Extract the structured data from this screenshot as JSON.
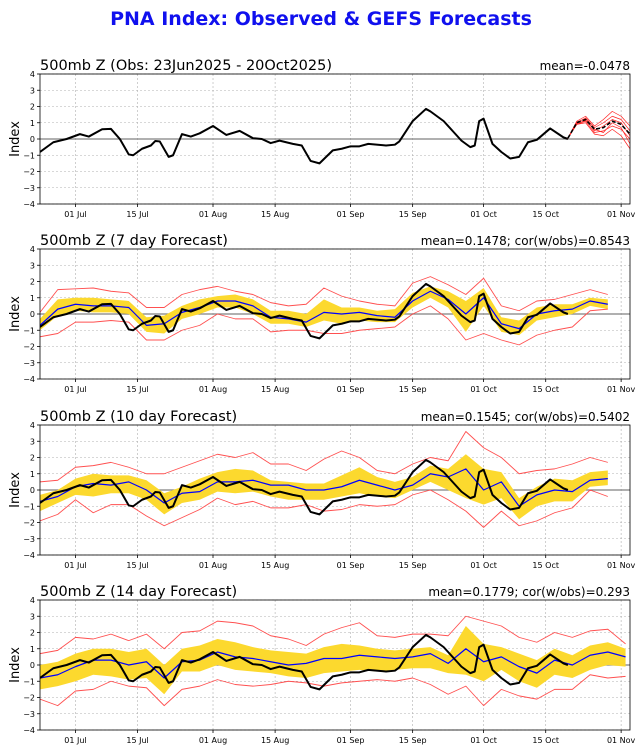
{
  "title": "PNA Index: Observed & GEFS Forecasts",
  "colors": {
    "title": "#1010ee",
    "observed": "#000000",
    "forecast_mean": "#0000ff",
    "spread_band": "#fcd92e",
    "extremes": "#ff5050",
    "members": "#ff2020",
    "grid": "#b0b0b0"
  },
  "chart_data": [
    {
      "type": "line",
      "title": "500mb Z (Obs: 23Jun2025 - 20Oct2025)",
      "stat_text": "mean=-0.0478",
      "ylabel": "Index",
      "ylim": [
        -4,
        4
      ],
      "xlim": [
        "2025-06-23",
        "2025-11-03"
      ],
      "grid": true,
      "yticks": [
        "4",
        "3",
        "2",
        "1",
        "0",
        "−1",
        "−2",
        "−3",
        "−4"
      ],
      "xticks": [
        [
          "2025-07-01",
          "01 Jul"
        ],
        [
          "2025-07-15",
          "15 Jul"
        ],
        [
          "2025-08-01",
          "01 Aug"
        ],
        [
          "2025-08-15",
          "15 Aug"
        ],
        [
          "2025-09-01",
          "01 Sep"
        ],
        [
          "2025-09-15",
          "15 Sep"
        ],
        [
          "2025-10-01",
          "01 Oct"
        ],
        [
          "2025-10-15",
          "15 Oct"
        ],
        [
          "2025-11-01",
          "01 Nov"
        ]
      ],
      "gefs": {
        "dates": [
          "2025-10-20",
          "2025-10-22",
          "2025-10-24",
          "2025-10-26",
          "2025-10-28",
          "2025-10-30",
          "2025-11-01",
          "2025-11-03"
        ],
        "mean": [
          0.05,
          1.0,
          1.2,
          0.6,
          0.7,
          1.1,
          0.9,
          0.3
        ],
        "members": [
          [
            0.05,
            1.1,
            1.4,
            0.8,
            1.2,
            1.7,
            1.4,
            0.8
          ],
          [
            0.05,
            0.9,
            1.0,
            0.3,
            0.2,
            0.6,
            0.2,
            -0.6
          ],
          [
            0.05,
            1.0,
            1.3,
            0.7,
            1.0,
            1.4,
            1.2,
            0.5
          ],
          [
            0.05,
            0.9,
            1.1,
            0.4,
            0.5,
            0.8,
            0.6,
            0.0
          ],
          [
            0.05,
            1.05,
            1.25,
            0.5,
            0.8,
            1.2,
            1.0,
            0.2
          ],
          [
            0.05,
            0.95,
            1.15,
            0.6,
            0.4,
            1.0,
            0.7,
            -0.3
          ]
        ]
      }
    },
    {
      "type": "line",
      "title": "500mb Z (7 day Forecast)",
      "stat_text": "mean=0.1478; cor(w/obs)=0.8543",
      "ylabel": "Index",
      "forecast": {
        "mean": [
          -0.7,
          0.3,
          0.6,
          0.5,
          0.5,
          0.4,
          -0.7,
          -0.6,
          0.1,
          0.4,
          0.8,
          0.8,
          0.5,
          -0.2,
          -0.3,
          -0.5,
          0.1,
          0.0,
          0.1,
          -0.1,
          -0.2,
          0.8,
          1.4,
          0.9,
          0.0,
          1.0,
          -0.6,
          -0.9,
          0.0,
          0.2,
          0.3,
          0.8,
          0.6
        ],
        "band_hi": [
          -0.3,
          0.9,
          1.0,
          1.0,
          0.9,
          0.8,
          -0.2,
          -0.1,
          0.5,
          0.9,
          1.1,
          1.2,
          0.9,
          0.2,
          0.2,
          0.0,
          0.9,
          0.4,
          0.4,
          0.2,
          0.3,
          1.3,
          1.7,
          1.4,
          0.8,
          1.6,
          -0.2,
          -0.4,
          0.4,
          0.6,
          0.6,
          1.0,
          0.9
        ],
        "band_lo": [
          -1.0,
          -0.1,
          0.2,
          0.1,
          0.1,
          0.0,
          -1.1,
          -1.2,
          -0.3,
          0.0,
          0.4,
          0.4,
          0.0,
          -0.6,
          -0.6,
          -0.8,
          -0.4,
          -0.6,
          -0.4,
          -0.5,
          -0.5,
          0.4,
          1.0,
          0.4,
          -1.1,
          0.5,
          -1.1,
          -1.3,
          -0.4,
          -0.2,
          0.0,
          0.5,
          0.3
        ],
        "max": [
          0.1,
          1.5,
          1.55,
          1.6,
          1.4,
          1.3,
          0.4,
          0.4,
          1.2,
          1.5,
          1.7,
          1.4,
          1.2,
          0.7,
          0.5,
          0.6,
          1.6,
          1.1,
          0.8,
          0.6,
          0.5,
          1.9,
          2.3,
          1.8,
          1.2,
          2.2,
          0.5,
          0.2,
          0.8,
          0.9,
          1.2,
          1.5,
          1.2
        ],
        "min": [
          -1.4,
          -1.2,
          -0.5,
          -0.5,
          -0.4,
          -0.5,
          -1.6,
          -1.6,
          -1.0,
          -0.7,
          0.0,
          -0.3,
          -0.3,
          -1.1,
          -1.0,
          -1.0,
          -1.2,
          -1.2,
          -1.0,
          -0.9,
          -0.8,
          0.0,
          0.5,
          -0.3,
          -1.6,
          -1.2,
          -1.6,
          -1.9,
          -1.3,
          -1.0,
          -0.8,
          0.2,
          0.3
        ]
      }
    },
    {
      "type": "line",
      "title": "500mb Z (10 day Forecast)",
      "stat_text": "mean=0.1545; cor(w/obs)=0.5402",
      "ylabel": "Index",
      "forecast": {
        "mean": [
          -0.7,
          -0.4,
          0.2,
          0.4,
          0.3,
          0.5,
          0.0,
          -0.8,
          -0.2,
          -0.1,
          0.5,
          0.5,
          0.6,
          0.3,
          0.3,
          0.0,
          0.0,
          0.2,
          0.6,
          0.3,
          0.0,
          0.3,
          1.0,
          0.8,
          1.3,
          0.0,
          0.5,
          -1.0,
          -0.3,
          0.0,
          -0.1,
          0.6,
          0.7
        ],
        "band_hi": [
          -0.3,
          0.0,
          0.7,
          1.0,
          0.9,
          0.9,
          0.6,
          -0.2,
          0.2,
          0.7,
          1.1,
          1.3,
          1.2,
          0.6,
          0.5,
          0.4,
          0.4,
          0.9,
          1.4,
          0.8,
          0.5,
          0.8,
          1.5,
          1.3,
          2.2,
          1.3,
          1.1,
          -0.5,
          0.2,
          0.7,
          0.6,
          1.1,
          1.2
        ],
        "band_lo": [
          -1.3,
          -0.8,
          -0.3,
          -0.4,
          -0.2,
          -0.2,
          -0.6,
          -1.5,
          -0.8,
          -0.6,
          -0.1,
          -0.2,
          -0.1,
          -0.4,
          -0.6,
          -0.6,
          -0.6,
          -0.4,
          -0.2,
          -0.4,
          -0.5,
          0.0,
          0.5,
          0.0,
          -0.5,
          -0.9,
          -0.5,
          -1.8,
          -1.0,
          -0.7,
          -0.7,
          0.2,
          0.3
        ],
        "max": [
          0.5,
          0.6,
          1.4,
          1.5,
          1.7,
          1.4,
          1.0,
          1.0,
          1.4,
          1.8,
          2.2,
          2.0,
          2.3,
          1.6,
          1.6,
          1.2,
          1.9,
          2.4,
          2.0,
          1.2,
          1.0,
          1.6,
          2.0,
          1.8,
          3.6,
          2.6,
          2.0,
          1.0,
          1.2,
          1.3,
          1.6,
          2.0,
          1.7
        ],
        "min": [
          -1.9,
          -1.5,
          -0.6,
          -1.4,
          -0.9,
          -0.9,
          -1.6,
          -2.2,
          -1.7,
          -1.2,
          -0.5,
          -0.9,
          -0.7,
          -1.1,
          -1.1,
          -0.9,
          -1.3,
          -1.2,
          -0.9,
          -1.0,
          -0.9,
          -0.3,
          0.0,
          -0.6,
          -1.3,
          -2.3,
          -1.3,
          -2.2,
          -1.9,
          -1.4,
          -1.1,
          0.0,
          -0.4
        ]
      }
    },
    {
      "type": "line",
      "title": "500mb Z (14 day Forecast)",
      "stat_text": "mean=0.1779; cor(w/obs)=0.293",
      "ylabel": "Index",
      "forecast": {
        "mean": [
          -0.8,
          -0.6,
          -0.1,
          0.3,
          0.3,
          0.0,
          0.2,
          -0.8,
          0.2,
          0.3,
          0.8,
          0.5,
          0.4,
          0.2,
          0.0,
          0.1,
          0.4,
          0.4,
          0.6,
          0.5,
          0.4,
          0.5,
          0.7,
          0.1,
          1.0,
          0.2,
          0.5,
          -0.1,
          -0.5,
          0.3,
          0.0,
          0.6,
          0.8,
          0.5
        ],
        "band_hi": [
          0.0,
          0.2,
          0.7,
          1.0,
          1.0,
          0.8,
          1.0,
          0.0,
          1.0,
          1.2,
          1.6,
          1.4,
          1.1,
          0.9,
          0.8,
          0.7,
          1.1,
          1.3,
          1.2,
          1.0,
          0.9,
          1.0,
          1.1,
          0.6,
          2.4,
          1.3,
          1.1,
          0.7,
          0.3,
          1.0,
          0.6,
          1.2,
          1.4,
          1.0
        ],
        "band_lo": [
          -1.5,
          -1.3,
          -1.0,
          -0.6,
          -0.7,
          -0.9,
          -0.8,
          -1.8,
          -0.4,
          -0.4,
          0.0,
          -0.3,
          -0.4,
          -0.5,
          -0.7,
          -0.8,
          -0.5,
          -0.4,
          -0.3,
          -0.4,
          -0.3,
          -0.2,
          -0.2,
          -0.5,
          -0.6,
          -1.0,
          -0.3,
          -1.0,
          -1.4,
          -0.6,
          -0.8,
          -0.3,
          0.0,
          -0.1
        ],
        "max": [
          0.7,
          0.9,
          1.7,
          1.6,
          1.9,
          1.5,
          1.9,
          1.0,
          2.0,
          2.1,
          2.7,
          2.6,
          2.4,
          1.8,
          1.6,
          1.2,
          1.9,
          2.3,
          2.6,
          1.8,
          1.7,
          1.9,
          1.9,
          1.8,
          3.0,
          2.7,
          2.4,
          1.7,
          1.4,
          2.0,
          1.7,
          2.1,
          2.2,
          1.3
        ],
        "min": [
          -2.1,
          -2.5,
          -1.6,
          -1.5,
          -1.0,
          -1.3,
          -1.4,
          -2.5,
          -1.5,
          -1.3,
          -0.9,
          -1.2,
          -1.3,
          -1.2,
          -1.0,
          -1.1,
          -1.3,
          -1.1,
          -1.0,
          -0.9,
          -1.0,
          -0.8,
          -1.2,
          -1.8,
          -1.3,
          -2.5,
          -1.5,
          -1.9,
          -2.1,
          -1.5,
          -1.5,
          -0.6,
          -0.8,
          -0.7
        ]
      }
    }
  ],
  "forecast_dates": [
    "2025-06-23",
    "2025-06-27",
    "2025-07-01",
    "2025-07-05",
    "2025-07-09",
    "2025-07-13",
    "2025-07-17",
    "2025-07-21",
    "2025-07-25",
    "2025-07-29",
    "2025-08-02",
    "2025-08-06",
    "2025-08-10",
    "2025-08-14",
    "2025-08-18",
    "2025-08-22",
    "2025-08-26",
    "2025-08-30",
    "2025-09-03",
    "2025-09-07",
    "2025-09-11",
    "2025-09-15",
    "2025-09-19",
    "2025-09-23",
    "2025-09-27",
    "2025-10-01",
    "2025-10-05",
    "2025-10-09",
    "2025-10-13",
    "2025-10-17",
    "2025-10-21",
    "2025-10-25",
    "2025-10-29",
    "2025-11-02"
  ],
  "observed": [
    [
      "2025-06-23",
      -0.8
    ],
    [
      "2025-06-26",
      -0.2
    ],
    [
      "2025-06-29",
      0.0
    ],
    [
      "2025-07-02",
      0.3
    ],
    [
      "2025-07-04",
      0.15
    ],
    [
      "2025-07-07",
      0.6
    ],
    [
      "2025-07-09",
      0.62
    ],
    [
      "2025-07-11",
      0.0
    ],
    [
      "2025-07-13",
      -0.95
    ],
    [
      "2025-07-14",
      -1.0
    ],
    [
      "2025-07-16",
      -0.6
    ],
    [
      "2025-07-18",
      -0.4
    ],
    [
      "2025-07-19",
      -0.12
    ],
    [
      "2025-07-20",
      -0.15
    ],
    [
      "2025-07-22",
      -1.1
    ],
    [
      "2025-07-23",
      -1.0
    ],
    [
      "2025-07-25",
      0.3
    ],
    [
      "2025-07-27",
      0.15
    ],
    [
      "2025-07-29",
      0.35
    ],
    [
      "2025-08-01",
      0.8
    ],
    [
      "2025-08-04",
      0.25
    ],
    [
      "2025-08-07",
      0.5
    ],
    [
      "2025-08-10",
      0.05
    ],
    [
      "2025-08-12",
      0.0
    ],
    [
      "2025-08-14",
      -0.25
    ],
    [
      "2025-08-16",
      -0.1
    ],
    [
      "2025-08-19",
      -0.3
    ],
    [
      "2025-08-21",
      -0.4
    ],
    [
      "2025-08-23",
      -1.35
    ],
    [
      "2025-08-25",
      -1.5
    ],
    [
      "2025-08-28",
      -0.7
    ],
    [
      "2025-08-30",
      -0.6
    ],
    [
      "2025-09-01",
      -0.45
    ],
    [
      "2025-09-03",
      -0.45
    ],
    [
      "2025-09-05",
      -0.3
    ],
    [
      "2025-09-09",
      -0.4
    ],
    [
      "2025-09-11",
      -0.35
    ],
    [
      "2025-09-12",
      -0.15
    ],
    [
      "2025-09-15",
      1.1
    ],
    [
      "2025-09-18",
      1.85
    ],
    [
      "2025-09-19",
      1.7
    ],
    [
      "2025-09-22",
      1.1
    ],
    [
      "2025-09-24",
      0.5
    ],
    [
      "2025-09-26",
      -0.1
    ],
    [
      "2025-09-28",
      -0.5
    ],
    [
      "2025-09-29",
      -0.4
    ],
    [
      "2025-09-30",
      1.1
    ],
    [
      "2025-10-01",
      1.25
    ],
    [
      "2025-10-03",
      -0.3
    ],
    [
      "2025-10-05",
      -0.8
    ],
    [
      "2025-10-07",
      -1.2
    ],
    [
      "2025-10-09",
      -1.1
    ],
    [
      "2025-10-11",
      -0.2
    ],
    [
      "2025-10-13",
      -0.05
    ],
    [
      "2025-10-16",
      0.65
    ],
    [
      "2025-10-19",
      0.1
    ],
    [
      "2025-10-20",
      0.0
    ]
  ]
}
